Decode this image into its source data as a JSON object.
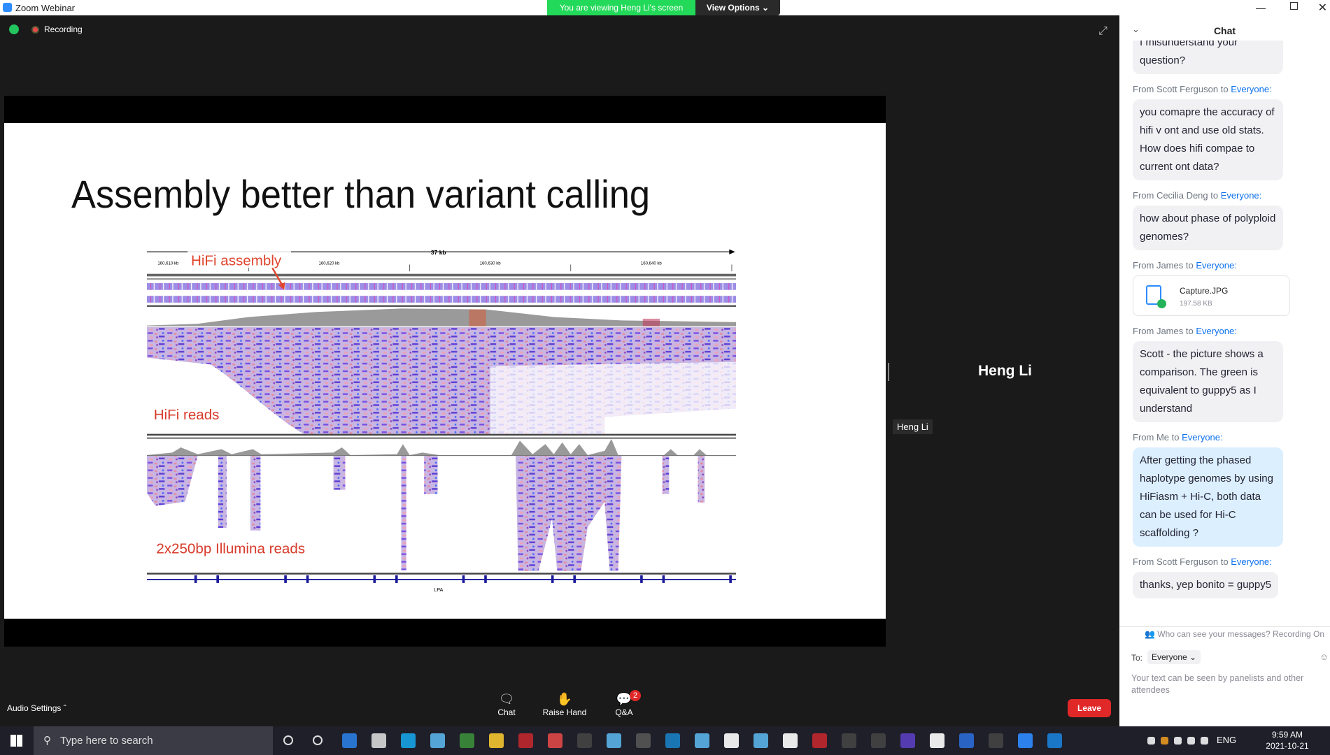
{
  "window": {
    "title": "Zoom Webinar"
  },
  "banner": {
    "viewing": "You are viewing Heng Li's screen",
    "view_options": "View Options"
  },
  "status": {
    "recording": "Recording"
  },
  "slide": {
    "title": "Assembly better than variant calling",
    "figure": {
      "scale": "37 kb",
      "ruler": [
        "160,610 kb",
        "160,620 kb",
        "160,630 kb",
        "160,640 kb"
      ],
      "assembly_label": "HiFi assembly",
      "hifi_label": "HiFi reads",
      "illumina_label": "2x250bp Illumina reads",
      "gene": "LPA"
    }
  },
  "speaker": {
    "name": "Heng Li",
    "tag": "Heng Li"
  },
  "chat": {
    "header": "Chat",
    "messages": [
      {
        "text": "I misunderstand your question?"
      },
      {
        "from": "From Scott Ferguson to",
        "to": "Everyone:",
        "text": "you comapre the accuracy of hifi v ont and use old stats. How does hifi compae to current ont data?"
      },
      {
        "from": "From Cecilia Deng to",
        "to": "Everyone:",
        "text": "how about phase of polyploid genomes?"
      },
      {
        "from": "From James to",
        "to": "Everyone:",
        "file": {
          "name": "Capture.JPG",
          "size": "197.58 KB"
        }
      },
      {
        "from": "From James to",
        "to": "Everyone:",
        "text": "Scott - the picture shows a comparison. The green is equivalent to guppy5 as I understand"
      },
      {
        "from": "From Me to",
        "to": "Everyone:",
        "text": "After getting the phased haplotype genomes by using HiFiasm + Hi-C, both data can be used for Hi-C scaffolding ?",
        "mine": true
      },
      {
        "from": "From Scott Ferguson to",
        "to": "Everyone:",
        "text": "thanks, yep bonito = guppy5"
      }
    ],
    "visibility": "Who can see your messages? Recording On",
    "to_label": "To:",
    "recipient": "Everyone",
    "placeholder": "Your text can be seen by panelists and other attendees"
  },
  "toolbar": {
    "audio": "Audio Settings",
    "buttons": [
      "Chat",
      "Raise Hand",
      "Q&A"
    ],
    "qa_badge": 2,
    "leave": "Leave"
  },
  "taskbar": {
    "search": "Type here to search",
    "lang": "ENG",
    "time": "9:59 AM",
    "date": "2021-10-21"
  }
}
